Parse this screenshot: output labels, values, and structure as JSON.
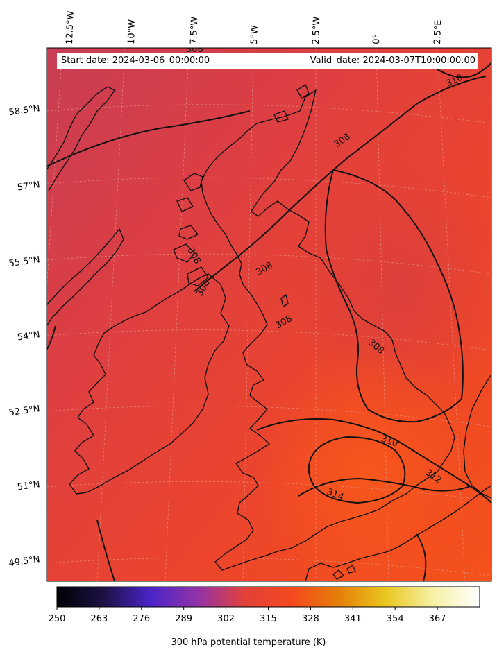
{
  "header": {
    "start_date": "Start date: 2024-03-06_00:00:00",
    "valid_date": "Valid_date: 2024-03-07T10:00:00.00"
  },
  "map": {
    "lon_labels": [
      "12.5°W",
      "10°W",
      "7.5°W",
      "5°W",
      "2.5°W",
      "0°",
      "2.5°E"
    ],
    "lat_labels": [
      "58.5°N",
      "57°N",
      "55.5°N",
      "54°N",
      "52.5°N",
      "51°N",
      "49.5°N"
    ],
    "contour_labels": [
      "308",
      "308",
      "308",
      "308",
      "308",
      "308",
      "310",
      "310",
      "312",
      "314"
    ],
    "top_clipped_label": "308",
    "colors": {
      "northwest": "#cf3f50",
      "center": "#e5403a",
      "southeast": "#f3501e",
      "warm_core": "#f5561b",
      "contour": "#111111"
    }
  },
  "colorbar": {
    "ticks": [
      "250",
      "263",
      "276",
      "289",
      "302",
      "315",
      "328",
      "341",
      "354",
      "367"
    ],
    "label": "300 hPa potential temperature (K)",
    "stops": [
      "#000004",
      "#1d1145",
      "#4a24c8",
      "#9233a8",
      "#e2413a",
      "#f4491f",
      "#e57f07",
      "#e9c71f",
      "#f6f1a4",
      "#ffffff"
    ]
  }
}
